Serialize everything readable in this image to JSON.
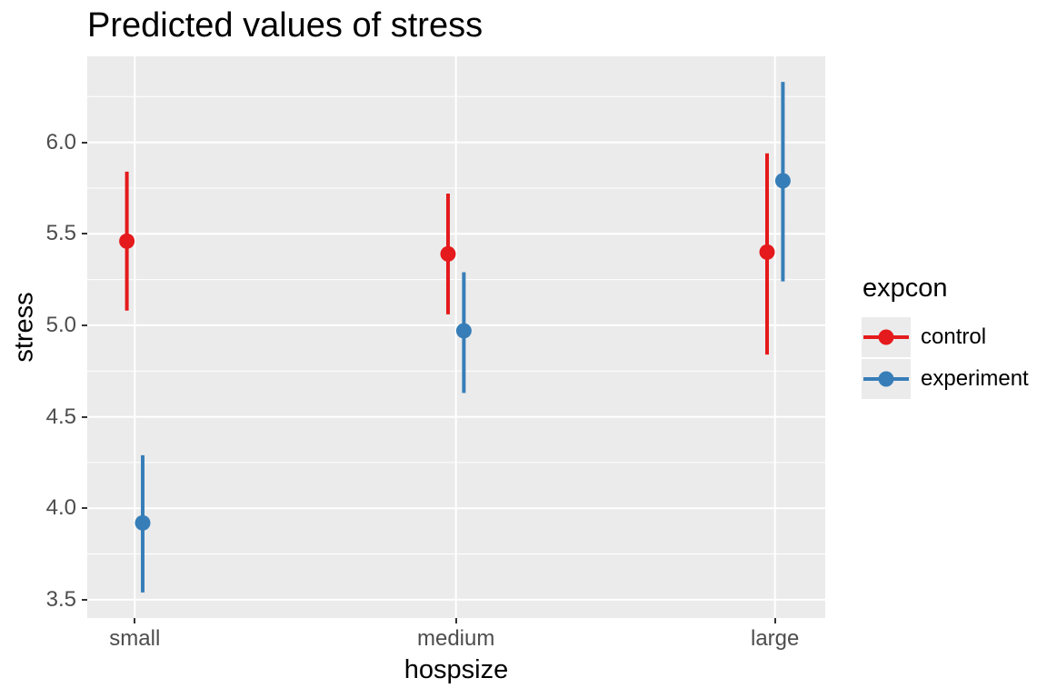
{
  "chart_data": {
    "type": "pointrange",
    "title": "Predicted values of stress",
    "xlabel": "hospsize",
    "ylabel": "stress",
    "categories": [
      "small",
      "medium",
      "large"
    ],
    "y_tick_labels": [
      "3.5",
      "4.0",
      "4.5",
      "5.0",
      "5.5",
      "6.0"
    ],
    "ylim": [
      3.4,
      6.47
    ],
    "grid": {
      "major": true,
      "minor": true,
      "gridline_color": "#FFFFFF"
    },
    "panel_background": "#EBEBEB",
    "legend": {
      "title": "expcon",
      "position": "right",
      "key_background": "#EBEBEB"
    },
    "series": [
      {
        "name": "control",
        "color": "#E41A1C",
        "points": [
          {
            "category": "small",
            "y": 5.46,
            "ymin": 5.08,
            "ymax": 5.84
          },
          {
            "category": "medium",
            "y": 5.39,
            "ymin": 5.06,
            "ymax": 5.72
          },
          {
            "category": "large",
            "y": 5.4,
            "ymin": 4.84,
            "ymax": 5.94
          }
        ]
      },
      {
        "name": "experiment",
        "color": "#377EB8",
        "points": [
          {
            "category": "small",
            "y": 3.92,
            "ymin": 3.54,
            "ymax": 4.29
          },
          {
            "category": "medium",
            "y": 4.97,
            "ymin": 4.63,
            "ymax": 5.29
          },
          {
            "category": "large",
            "y": 5.79,
            "ymin": 5.24,
            "ymax": 6.33
          }
        ]
      }
    ],
    "text_colors": {
      "title": "#000000",
      "axis_text": "#4D4D4D",
      "axis_title": "#000000",
      "tick_mark": "#333333"
    }
  }
}
